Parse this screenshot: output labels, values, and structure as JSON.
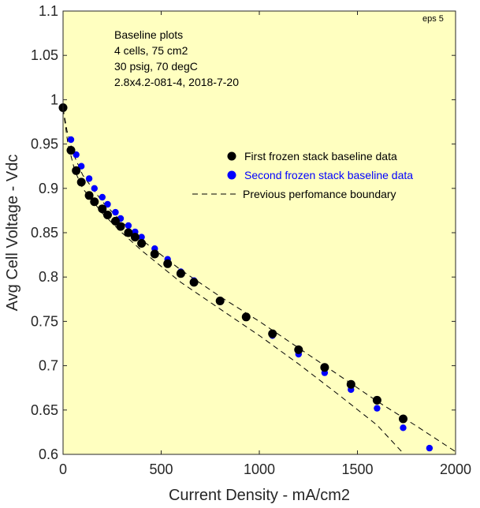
{
  "chart_data": {
    "type": "scatter",
    "title": "",
    "xlabel": "Current Density - mA/cm2",
    "ylabel": "Avg Cell Voltage - Vdc",
    "xlim": [
      0,
      2000
    ],
    "ylim": [
      0.6,
      1.1
    ],
    "x_ticks": [
      "0",
      "500",
      "1000",
      "1500",
      "2000"
    ],
    "y_ticks": [
      "0.6",
      "0.65",
      "0.7",
      "0.75",
      "0.8",
      "0.85",
      "0.9",
      "0.95",
      "1",
      "1.05",
      "1.1"
    ],
    "grid": false,
    "background_color": "#ffffc0",
    "corner_tag": "eps 5",
    "annotation_lines": [
      "Baseline plots",
      "4 cells, 75 cm2",
      "30 psig, 70 degC",
      "2.8x4.2-081-4, 2018-7-20"
    ],
    "legend_position": "right",
    "series": [
      {
        "name": "First frozen stack baseline data",
        "color": "#000000",
        "marker": "circle",
        "points": [
          [
            0,
            0.991
          ],
          [
            40,
            0.943
          ],
          [
            67,
            0.92
          ],
          [
            93,
            0.907
          ],
          [
            133,
            0.892
          ],
          [
            160,
            0.885
          ],
          [
            200,
            0.877
          ],
          [
            227,
            0.87
          ],
          [
            267,
            0.863
          ],
          [
            293,
            0.857
          ],
          [
            333,
            0.85
          ],
          [
            367,
            0.845
          ],
          [
            400,
            0.838
          ],
          [
            467,
            0.826
          ],
          [
            533,
            0.815
          ],
          [
            600,
            0.804
          ],
          [
            667,
            0.794
          ],
          [
            800,
            0.773
          ],
          [
            933,
            0.755
          ],
          [
            1067,
            0.736
          ],
          [
            1200,
            0.718
          ],
          [
            1333,
            0.698
          ],
          [
            1467,
            0.679
          ],
          [
            1600,
            0.661
          ],
          [
            1733,
            0.64
          ]
        ]
      },
      {
        "name": "Second frozen stack baseline data",
        "color": "#0000ff",
        "marker": "circle",
        "points": [
          [
            0,
            0.991
          ],
          [
            40,
            0.955
          ],
          [
            67,
            0.938
          ],
          [
            93,
            0.925
          ],
          [
            133,
            0.911
          ],
          [
            160,
            0.9
          ],
          [
            200,
            0.89
          ],
          [
            227,
            0.882
          ],
          [
            267,
            0.873
          ],
          [
            293,
            0.866
          ],
          [
            333,
            0.858
          ],
          [
            367,
            0.851
          ],
          [
            400,
            0.845
          ],
          [
            467,
            0.832
          ],
          [
            533,
            0.82
          ],
          [
            600,
            0.806
          ],
          [
            667,
            0.796
          ],
          [
            800,
            0.774
          ],
          [
            933,
            0.754
          ],
          [
            1067,
            0.734
          ],
          [
            1200,
            0.713
          ],
          [
            1333,
            0.692
          ],
          [
            1467,
            0.673
          ],
          [
            1600,
            0.652
          ],
          [
            1733,
            0.63
          ],
          [
            1867,
            0.607
          ]
        ]
      },
      {
        "name": "Previous perfomance boundary",
        "color": "#000000",
        "style": "dashed",
        "lines": [
          [
            [
              0,
              0.99
            ],
            [
              20,
              0.965
            ],
            [
              50,
              0.94
            ],
            [
              100,
              0.915
            ],
            [
              200,
              0.885
            ],
            [
              300,
              0.862
            ],
            [
              400,
              0.842
            ],
            [
              600,
              0.808
            ],
            [
              800,
              0.778
            ],
            [
              1000,
              0.75
            ],
            [
              1200,
              0.72
            ],
            [
              1400,
              0.69
            ],
            [
              1600,
              0.66
            ],
            [
              1800,
              0.632
            ],
            [
              2000,
              0.603
            ]
          ],
          [
            [
              0,
              0.99
            ],
            [
              25,
              0.95
            ],
            [
              60,
              0.92
            ],
            [
              100,
              0.9
            ],
            [
              200,
              0.872
            ],
            [
              300,
              0.85
            ],
            [
              400,
              0.83
            ],
            [
              500,
              0.812
            ],
            [
              600,
              0.794
            ],
            [
              800,
              0.764
            ],
            [
              1000,
              0.734
            ],
            [
              1200,
              0.702
            ],
            [
              1400,
              0.668
            ],
            [
              1600,
              0.633
            ],
            [
              1730,
              0.602
            ]
          ]
        ]
      }
    ]
  }
}
